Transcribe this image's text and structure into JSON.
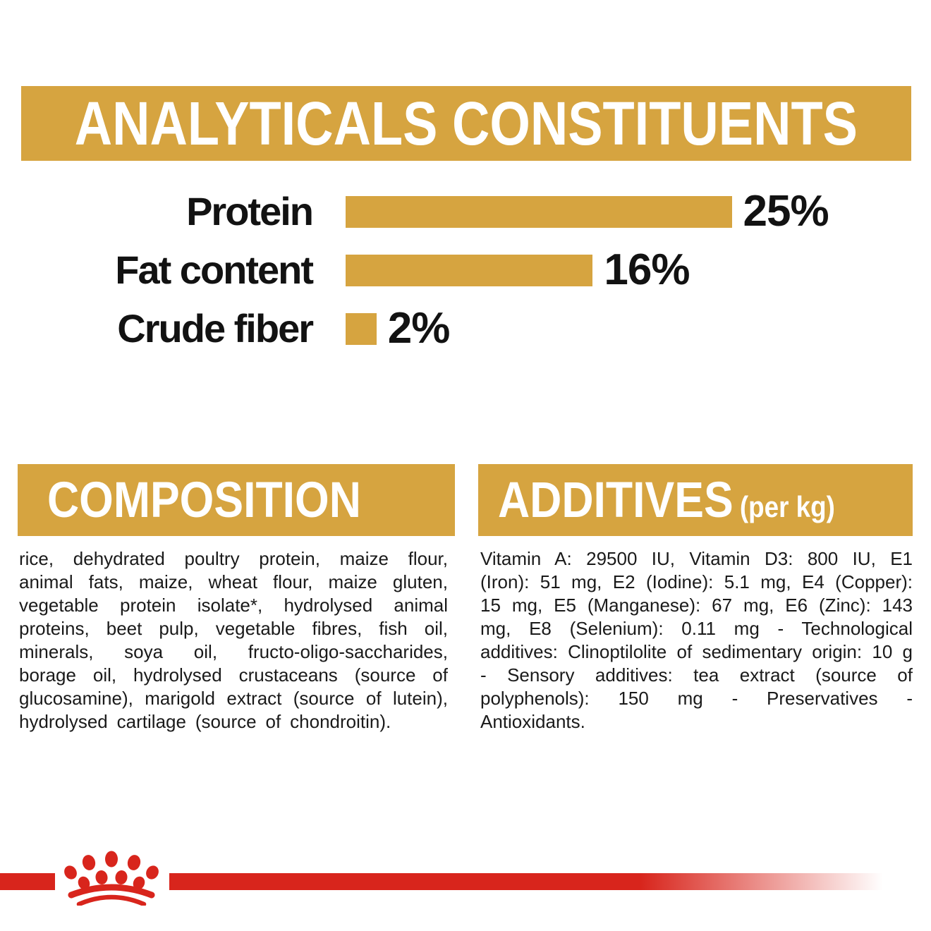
{
  "colors": {
    "gold": "#D6A440",
    "red": "#D8251C",
    "heading_text": "#FFFFFF",
    "body_text": "#1A1A1A",
    "background": "#FFFFFF"
  },
  "analyticals": {
    "title": "ANALYTICALS CONSTITUENTS"
  },
  "chart_data": {
    "type": "bar",
    "orientation": "horizontal",
    "title": "ANALYTICALS CONSTITUENTS",
    "categories": [
      "Protein",
      "Fat content",
      "Crude fiber"
    ],
    "values": [
      25,
      16,
      2
    ],
    "value_labels": [
      "25%",
      "16%",
      "2%"
    ],
    "unit": "percent",
    "xlim": [
      0,
      25
    ],
    "bar_color": "#D6A440",
    "grid": false,
    "legend": false,
    "value_label_position": "right-of-bar"
  },
  "composition": {
    "title": "COMPOSITION",
    "body": "rice, dehydrated poultry protein, maize flour, animal fats, maize, wheat flour, maize gluten, vegetable protein isolate*, hydrolysed animal proteins, beet pulp, vegetable fibres, fish oil, minerals, soya oil, fructo-oligo-saccharides, borage oil, hydrolysed crustaceans (source of glucosamine), marigold extract (source of lutein), hydrolysed cartilage (source of chondroitin)."
  },
  "additives": {
    "title": "ADDITIVES",
    "title_suffix": "(per kg)",
    "body": "Vitamin A: 29500 IU, Vitamin D3: 800 IU, E1 (Iron): 51 mg, E2 (Iodine): 5.1 mg, E4 (Copper): 15 mg, E5 (Manganese): 67 mg, E6 (Zinc): 143 mg, E8 (Selenium): 0.11 mg - Technological additives: Clinoptilolite of sedimentary origin: 10 g - Sensory additives: tea extract (source of polyphenols): 150 mg - Preservatives - Antioxidants."
  },
  "footer": {
    "logo": "royal-canin-crown-logo"
  }
}
